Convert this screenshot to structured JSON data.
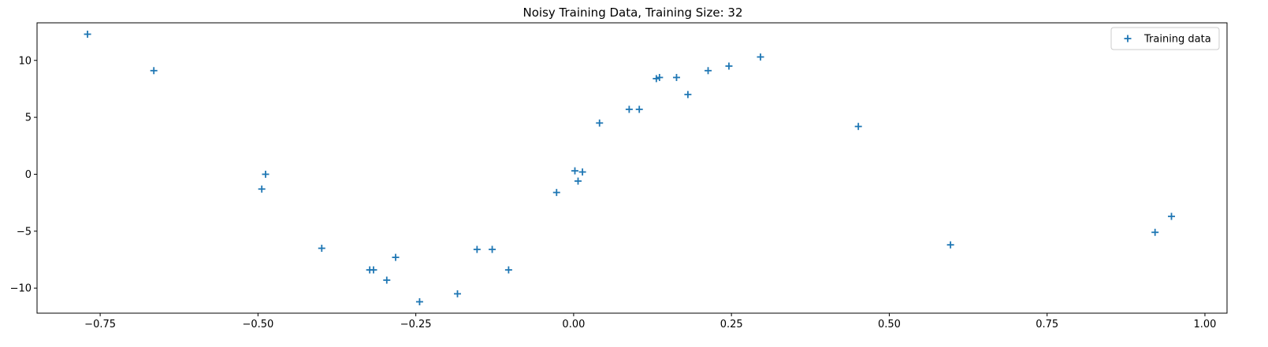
{
  "chart_data": {
    "type": "scatter",
    "title": "Noisy Training Data, Training Size: 32",
    "xlabel": "",
    "ylabel": "",
    "xlim": [
      -0.85,
      1.035
    ],
    "ylim": [
      -12.2,
      13.3
    ],
    "x_ticks": [
      -0.75,
      -0.5,
      -0.25,
      0.0,
      0.25,
      0.5,
      0.75,
      1.0
    ],
    "x_tick_labels": [
      "−0.75",
      "−0.50",
      "−0.25",
      "0.00",
      "0.25",
      "0.50",
      "0.75",
      "1.00"
    ],
    "y_ticks": [
      -10,
      -5,
      0,
      5,
      10
    ],
    "y_tick_labels": [
      "−10",
      "−5",
      "0",
      "5",
      "10"
    ],
    "grid": false,
    "legend_position": "top-right",
    "series": [
      {
        "name": "Training data",
        "marker": "plus",
        "color": "#1f77b4",
        "points": [
          {
            "x": -0.77,
            "y": 12.3
          },
          {
            "x": -0.665,
            "y": 9.1
          },
          {
            "x": -0.494,
            "y": -1.3
          },
          {
            "x": -0.488,
            "y": 0.0
          },
          {
            "x": -0.399,
            "y": -6.5
          },
          {
            "x": -0.323,
            "y": -8.4
          },
          {
            "x": -0.317,
            "y": -8.4
          },
          {
            "x": -0.296,
            "y": -9.3
          },
          {
            "x": -0.282,
            "y": -7.3
          },
          {
            "x": -0.244,
            "y": -11.2
          },
          {
            "x": -0.184,
            "y": -10.5
          },
          {
            "x": -0.153,
            "y": -6.6
          },
          {
            "x": -0.129,
            "y": -6.6
          },
          {
            "x": -0.103,
            "y": -8.4
          },
          {
            "x": -0.027,
            "y": -1.6
          },
          {
            "x": 0.002,
            "y": 0.3
          },
          {
            "x": 0.007,
            "y": -0.6
          },
          {
            "x": 0.014,
            "y": 0.2
          },
          {
            "x": 0.041,
            "y": 4.5
          },
          {
            "x": 0.088,
            "y": 5.7
          },
          {
            "x": 0.104,
            "y": 5.7
          },
          {
            "x": 0.131,
            "y": 8.4
          },
          {
            "x": 0.136,
            "y": 8.5
          },
          {
            "x": 0.163,
            "y": 8.5
          },
          {
            "x": 0.181,
            "y": 7.0
          },
          {
            "x": 0.213,
            "y": 9.1
          },
          {
            "x": 0.246,
            "y": 9.5
          },
          {
            "x": 0.296,
            "y": 10.3
          },
          {
            "x": 0.451,
            "y": 4.2
          },
          {
            "x": 0.597,
            "y": -6.2
          },
          {
            "x": 0.921,
            "y": -5.1
          },
          {
            "x": 0.947,
            "y": -3.7
          }
        ]
      }
    ]
  }
}
